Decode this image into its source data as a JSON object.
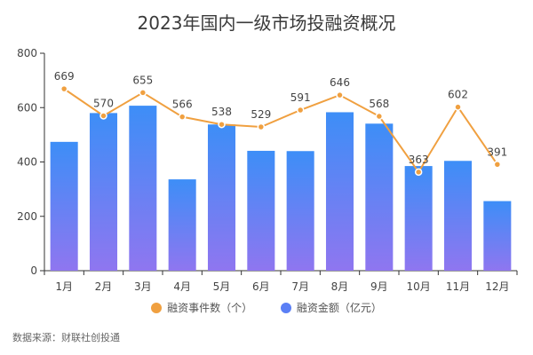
{
  "chart_data": {
    "type": "bar",
    "title": "2023年国内一级市场投融资概况",
    "categories": [
      "1月",
      "2月",
      "3月",
      "4月",
      "5月",
      "6月",
      "7月",
      "8月",
      "9月",
      "10月",
      "11月",
      "12月"
    ],
    "ylim": [
      0,
      800
    ],
    "yticks": [
      0,
      200,
      400,
      600,
      800
    ],
    "grid": false,
    "legend_position": "bottom",
    "series": [
      {
        "name": "融资事件数（个）",
        "type": "line",
        "color": "#f0a040",
        "values": [
          669,
          570,
          655,
          566,
          538,
          529,
          591,
          646,
          568,
          363,
          602,
          391
        ]
      },
      {
        "name": "融资金额（亿元）",
        "type": "bar",
        "color_top": "#3d8ef7",
        "color_bottom": "#8f76f0",
        "values": [
          474,
          580,
          607,
          336,
          538,
          441,
          440,
          583,
          541,
          385,
          404,
          256
        ]
      }
    ]
  },
  "source_note": "数据来源：财联社创投通"
}
